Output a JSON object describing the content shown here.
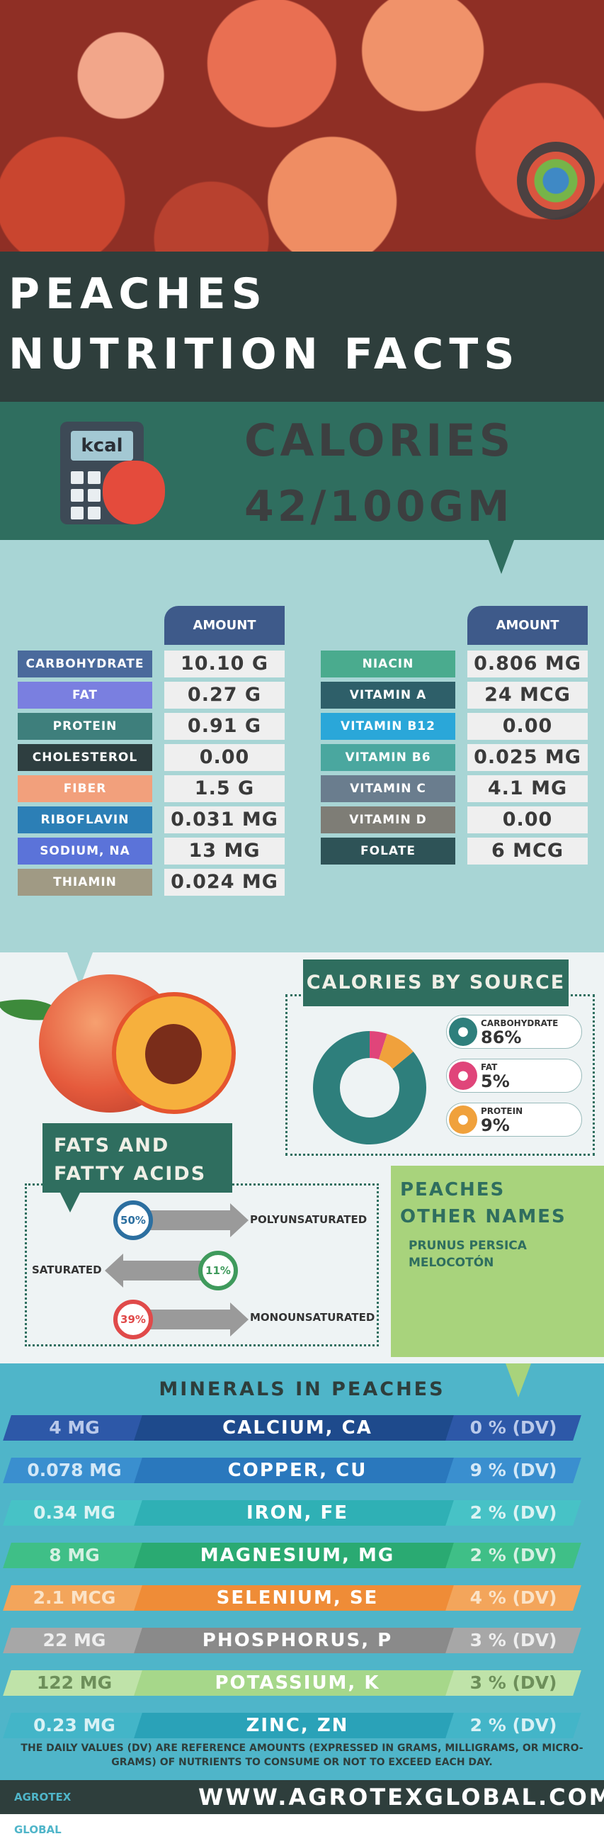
{
  "title": {
    "line1": "PEACHES",
    "line2": "NUTRITION FACTS"
  },
  "calories": {
    "icon_text": "kcal",
    "label": "CALORIES",
    "value": "42/100GM"
  },
  "nutrients": {
    "amount_header": "AMOUNT",
    "left": [
      {
        "label": "CARBOHYDRATE",
        "value": "10.10 G",
        "color": "#4a6a9c"
      },
      {
        "label": "FAT",
        "value": "0.27 G",
        "color": "#7a7fe0"
      },
      {
        "label": "PROTEIN",
        "value": "0.91 G",
        "color": "#3e7f7c"
      },
      {
        "label": "CHOLESTEROL",
        "value": "0.00",
        "color": "#2e3e40"
      },
      {
        "label": "FIBER",
        "value": "1.5 G",
        "color": "#f2a07c"
      },
      {
        "label": "RIBOFLAVIN",
        "value": "0.031 MG",
        "color": "#2c7fb6"
      },
      {
        "label": "SODIUM, NA",
        "value": "13 MG",
        "color": "#5b73d9"
      },
      {
        "label": "THIAMIN",
        "value": "0.024 MG",
        "color": "#a09a84"
      }
    ],
    "right": [
      {
        "label": "NIACIN",
        "value": "0.806 MG",
        "color": "#4aab8e"
      },
      {
        "label": "VITAMIN A",
        "value": "24 MCG",
        "color": "#2e5f69"
      },
      {
        "label": "VITAMIN B12",
        "value": "0.00",
        "color": "#2aa7d9"
      },
      {
        "label": "VITAMIN B6",
        "value": "0.025 MG",
        "color": "#4aa79f"
      },
      {
        "label": "VITAMIN C",
        "value": "4.1 MG",
        "color": "#6a7d8e"
      },
      {
        "label": "VITAMIN D",
        "value": "0.00",
        "color": "#7e7d76"
      },
      {
        "label": "FOLATE",
        "value": "6 MCG",
        "color": "#2e5357"
      }
    ]
  },
  "calories_by_source": {
    "title": "CALORIES BY SOURCE",
    "items": [
      {
        "name": "CARBOHYDRATE",
        "value": "86%",
        "percent": 86,
        "color": "#2e7f7c",
        "icon": "wheat-icon"
      },
      {
        "name": "FAT",
        "value": "5%",
        "percent": 5,
        "color": "#e0457a",
        "icon": "drop-icon"
      },
      {
        "name": "PROTEIN",
        "value": "9%",
        "percent": 9,
        "color": "#f0a13c",
        "icon": "protein-icon"
      }
    ]
  },
  "fats": {
    "title_line1": "FATS AND",
    "title_line2": "FATTY ACIDS",
    "items": [
      {
        "name": "POLYUNSATURATED",
        "value": "50%",
        "color": "#2c6fa0"
      },
      {
        "name": "SATURATED",
        "value": "11%",
        "color": "#3f9a5c"
      },
      {
        "name": "MONOUNSATURATED",
        "value": "39%",
        "color": "#e04a4a"
      }
    ]
  },
  "other_names": {
    "title_line1": "PEACHES",
    "title_line2": "OTHER NAMES",
    "items": [
      "PRUNUS PERSICA",
      "MELOCOTÓN"
    ]
  },
  "minerals": {
    "title": "MINERALS IN PEACHES",
    "rows": [
      {
        "amount": "4 MG",
        "name": "CALCIUM, CA",
        "dv": "0 % (DV)",
        "amt_color": "#2d58a8",
        "amt_text": "#b9c9ea",
        "name_color": "#1e4a8c",
        "dv_color": "#2d58a8",
        "dv_text": "#b9c9ea"
      },
      {
        "amount": "0.078 MG",
        "name": "COPPER, CU",
        "dv": "9 % (DV)",
        "amt_color": "#3a8fcf",
        "amt_text": "#d3e8f7",
        "name_color": "#2a78bd",
        "dv_color": "#3a8fcf",
        "dv_text": "#d3e8f7"
      },
      {
        "amount": "0.34 MG",
        "name": "IRON, FE",
        "dv": "2 % (DV)",
        "amt_color": "#47c2c6",
        "amt_text": "#dcf3f3",
        "name_color": "#2fb0b5",
        "dv_color": "#47c2c6",
        "dv_text": "#dcf3f3"
      },
      {
        "amount": "8 MG",
        "name": "MAGNESIUM, MG",
        "dv": "2 % (DV)",
        "amt_color": "#3fbf87",
        "amt_text": "#d6f0e2",
        "name_color": "#2aaa72",
        "dv_color": "#3fbf87",
        "dv_text": "#d6f0e2"
      },
      {
        "amount": "2.1 MCG",
        "name": "SELENIUM, SE",
        "dv": "4 % (DV)",
        "amt_color": "#f3a55b",
        "amt_text": "#fbe3c7",
        "name_color": "#ef8c37",
        "dv_color": "#f3a55b",
        "dv_text": "#fbe3c7"
      },
      {
        "amount": "22 MG",
        "name": "PHOSPHORUS, P",
        "dv": "3 % (DV)",
        "amt_color": "#a7a7a7",
        "amt_text": "#eeeeee",
        "name_color": "#8a8a8a",
        "dv_color": "#a7a7a7",
        "dv_text": "#eeeeee"
      },
      {
        "amount": "122 MG",
        "name": "POTASSIUM, K",
        "dv": "3 % (DV)",
        "amt_color": "#bfe3a9",
        "amt_text": "#6d8f5a",
        "name_color": "#a6d78a",
        "dv_color": "#bfe3a9",
        "dv_text": "#6d8f5a"
      },
      {
        "amount": "0.23 MG",
        "name": "ZINC, ZN",
        "dv": "2 % (DV)",
        "amt_color": "#43b5c8",
        "amt_text": "#d8f1f5",
        "name_color": "#2aa2b8",
        "dv_color": "#43b5c8",
        "dv_text": "#d8f1f5"
      }
    ]
  },
  "footer": {
    "note": "THE DAILY VALUES (DV) ARE REFERENCE AMOUNTS (EXPRESSED IN GRAMS, MILLIGRAMS, OR MICRO-GRAMS) OF NUTRIENTS TO CONSUME OR NOT TO EXCEED EACH DAY.",
    "logo": "AGROTEX GLOBAL",
    "site": "WWW.AGROTEXGLOBAL.COM"
  }
}
